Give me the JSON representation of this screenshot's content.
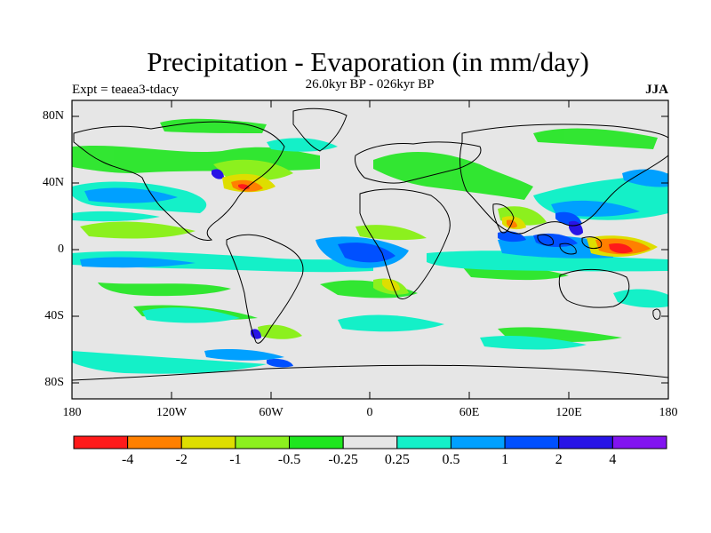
{
  "title": "Precipitation - Evaporation (in mm/day)",
  "subtitle": "26.0kyr BP - 026kyr BP",
  "experiment": "Expt = teaea3-tdacy",
  "season": "JJA",
  "lat_ticks": [
    "80N",
    "40N",
    "0",
    "40S",
    "80S"
  ],
  "lon_ticks": [
    "180",
    "120W",
    "60W",
    "0",
    "60E",
    "120E",
    "180"
  ],
  "colorbar": {
    "labels": [
      "-4",
      "-2",
      "-1",
      "-0.5",
      "-0.25",
      "0.25",
      "0.5",
      "1",
      "2",
      "4"
    ],
    "colors": [
      "#ff1a1a",
      "#ff8000",
      "#dede00",
      "#8cf01e",
      "#1ee61e",
      "#e6e6e6",
      "#14f0c8",
      "#00a0ff",
      "#0050ff",
      "#2814e6",
      "#8214f0"
    ]
  },
  "colors": {
    "background": "#e6e6e6",
    "land_outline": "#000000"
  }
}
